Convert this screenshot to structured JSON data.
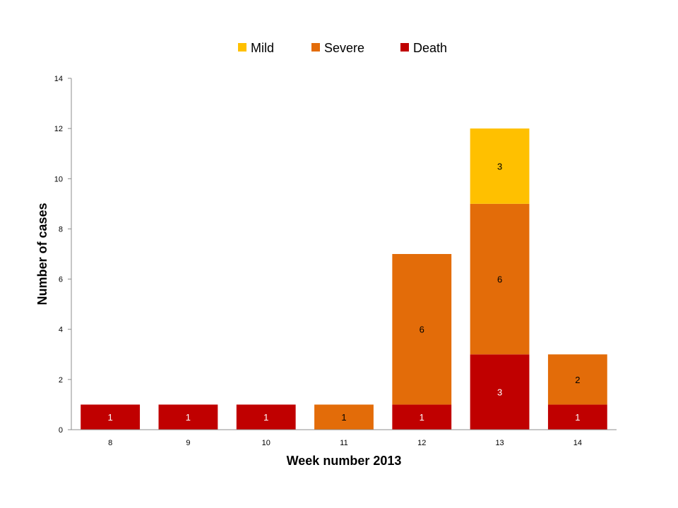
{
  "chart_data": {
    "type": "bar",
    "stacked": true,
    "categories": [
      "8",
      "9",
      "10",
      "11",
      "12",
      "13",
      "14"
    ],
    "series": [
      {
        "name": "Death",
        "color": "#c00000",
        "label_color": "#ffffff",
        "values": [
          1,
          1,
          1,
          0,
          1,
          3,
          1
        ]
      },
      {
        "name": "Severe",
        "color": "#e36c09",
        "label_color": "#000000",
        "values": [
          0,
          0,
          0,
          1,
          6,
          6,
          2
        ]
      },
      {
        "name": "Mild",
        "color": "#ffc000",
        "label_color": "#000000",
        "values": [
          0,
          0,
          0,
          0,
          0,
          3,
          0
        ]
      }
    ],
    "legend_order": [
      "Mild",
      "Severe",
      "Death"
    ],
    "legend_position": "top",
    "xlabel": "Week number 2013",
    "ylabel": "Number of cases",
    "ylim": [
      0,
      14
    ],
    "yticks": [
      0,
      2,
      4,
      6,
      8,
      10,
      12,
      14
    ],
    "grid": false
  }
}
